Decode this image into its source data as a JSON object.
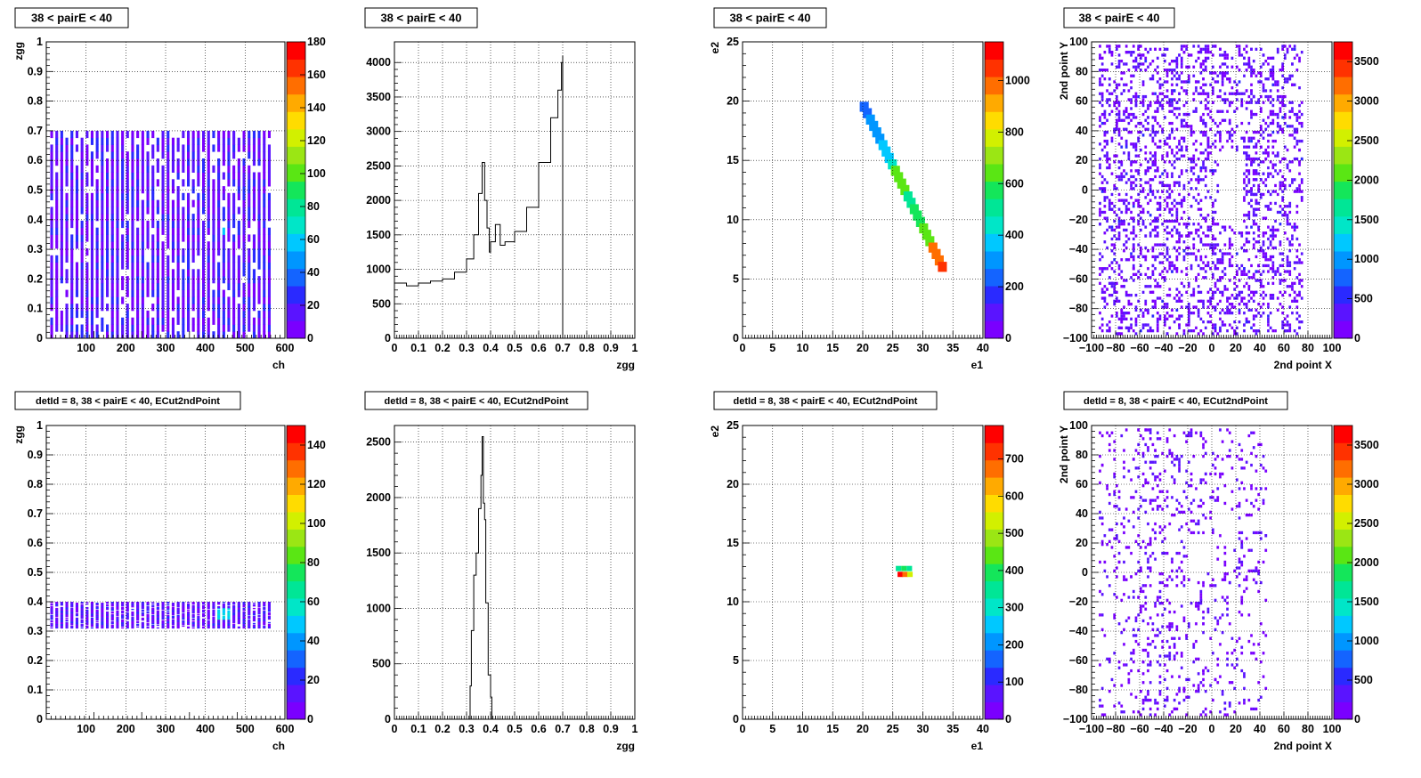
{
  "colors": {
    "palette": [
      "#7a00ff",
      "#5a14ff",
      "#2a2aff",
      "#1464ff",
      "#0096ff",
      "#00c8ff",
      "#00e6c8",
      "#00e696",
      "#14e65a",
      "#5ae614",
      "#9be614",
      "#d2f000",
      "#ffdc00",
      "#ffaa00",
      "#ff6e00",
      "#ff3200",
      "#ff0000"
    ],
    "grid": "#000000",
    "frame": "#000000"
  },
  "chart_data": [
    {
      "type": "heatmap",
      "title": "38 < pairE < 40",
      "xlabel": "ch",
      "ylabel": "zgg",
      "xlim": [
        0,
        600
      ],
      "ylim": [
        0,
        1
      ],
      "xticks": [
        100,
        200,
        300,
        400,
        500,
        600
      ],
      "xtick_labels": [
        "100",
        "200",
        "300",
        "400",
        "500",
        "600"
      ],
      "yticks": [
        0,
        0.1,
        0.2,
        0.3,
        0.4,
        0.5,
        0.6,
        0.7,
        0.8,
        0.9,
        1
      ],
      "ytick_labels": [
        "0",
        "0.1",
        "0.2",
        "0.3",
        "0.4",
        "0.5",
        "0.6",
        "0.7",
        "0.8",
        "0.9",
        "1"
      ],
      "zlim": [
        0,
        180
      ],
      "zticks": [
        0,
        20,
        40,
        60,
        80,
        100,
        120,
        140,
        160,
        180
      ],
      "ztick_labels": [
        "0",
        "20",
        "40",
        "60",
        "80",
        "100",
        "120",
        "140",
        "160",
        "180"
      ],
      "grid": true,
      "content": {
        "kind": "stripes",
        "x_range": [
          10,
          570
        ],
        "y_range": [
          0,
          0.7
        ],
        "stripe_count": 44,
        "hot_x": [
          440,
          450
        ],
        "hot_y": [
          0.33,
          0.4
        ]
      }
    },
    {
      "type": "line",
      "title": "38 < pairE < 40",
      "xlabel": "zgg",
      "ylabel": "",
      "xlim": [
        0,
        1
      ],
      "ylim": [
        0,
        4300
      ],
      "xticks": [
        0,
        0.1,
        0.2,
        0.3,
        0.4,
        0.5,
        0.6,
        0.7,
        0.8,
        0.9,
        1
      ],
      "xtick_labels": [
        "0",
        "0.1",
        "0.2",
        "0.3",
        "0.4",
        "0.5",
        "0.6",
        "0.7",
        "0.8",
        "0.9",
        "1"
      ],
      "yticks": [
        0,
        500,
        1000,
        1500,
        2000,
        2500,
        3000,
        3500,
        4000
      ],
      "ytick_labels": [
        "0",
        "500",
        "1000",
        "1500",
        "2000",
        "2500",
        "3000",
        "3500",
        "4000"
      ],
      "grid": true,
      "x": [
        0,
        0.05,
        0.1,
        0.15,
        0.2,
        0.25,
        0.3,
        0.33,
        0.35,
        0.365,
        0.375,
        0.385,
        0.395,
        0.4,
        0.42,
        0.44,
        0.46,
        0.5,
        0.55,
        0.6,
        0.65,
        0.68,
        0.695,
        0.7,
        0.7
      ],
      "values": [
        800,
        760,
        800,
        830,
        860,
        960,
        1150,
        1500,
        2100,
        2550,
        2000,
        1600,
        1250,
        1400,
        1650,
        1350,
        1400,
        1550,
        1900,
        2550,
        3200,
        3600,
        4000,
        4100,
        0
      ]
    },
    {
      "type": "heatmap",
      "title": "38 < pairE < 40",
      "xlabel": "e1",
      "ylabel": "e2",
      "xlim": [
        0,
        40
      ],
      "ylim": [
        0,
        25
      ],
      "xticks": [
        0,
        5,
        10,
        15,
        20,
        25,
        30,
        35,
        40
      ],
      "xtick_labels": [
        "0",
        "5",
        "10",
        "15",
        "20",
        "25",
        "30",
        "35",
        "40"
      ],
      "yticks": [
        0,
        5,
        10,
        15,
        20,
        25
      ],
      "ytick_labels": [
        "0",
        "5",
        "10",
        "15",
        "20",
        "25"
      ],
      "zlim": [
        0,
        1150
      ],
      "zticks": [
        0,
        200,
        400,
        600,
        800,
        1000
      ],
      "ztick_labels": [
        "0",
        "200",
        "400",
        "600",
        "800",
        "1000"
      ],
      "grid": true,
      "content": {
        "kind": "band",
        "x_range": [
          19.5,
          34
        ],
        "y_range": [
          6,
          19.5
        ]
      }
    },
    {
      "type": "heatmap",
      "title": "38 < pairE < 40",
      "xlabel": "2nd point X",
      "ylabel": "2nd point Y",
      "xlim": [
        -100,
        100
      ],
      "ylim": [
        -100,
        100
      ],
      "xticks": [
        -100,
        -80,
        -60,
        -40,
        -20,
        0,
        20,
        40,
        60,
        80,
        100
      ],
      "xtick_labels": [
        "−100",
        "−80",
        "−60",
        "−40",
        "−20",
        "0",
        "20",
        "40",
        "60",
        "80",
        "100"
      ],
      "yticks": [
        -100,
        -80,
        -60,
        -40,
        -20,
        0,
        20,
        40,
        60,
        80,
        100
      ],
      "ytick_labels": [
        "−100",
        "−80",
        "−60",
        "−40",
        "−20",
        "0",
        "20",
        "40",
        "60",
        "80",
        "100"
      ],
      "zlim": [
        0,
        3750
      ],
      "zticks": [
        0,
        500,
        1000,
        1500,
        2000,
        2500,
        3000,
        3500
      ],
      "ztick_labels": [
        "0",
        "500",
        "1000",
        "1500",
        "2000",
        "2500",
        "3000",
        "3500"
      ],
      "grid": true,
      "content": {
        "kind": "scatter2d",
        "x_range": [
          -95,
          75
        ],
        "y_range": [
          -98,
          97
        ],
        "density": "dense",
        "hole": [
          5,
          25,
          -25,
          25
        ]
      }
    },
    {
      "type": "heatmap",
      "title": "detId = 8, 38 < pairE < 40, ECut2ndPoint",
      "xlabel": "ch",
      "ylabel": "zgg",
      "xlim": [
        0,
        600
      ],
      "ylim": [
        0,
        1
      ],
      "xticks": [
        100,
        200,
        300,
        400,
        500,
        600
      ],
      "xtick_labels": [
        "100",
        "200",
        "300",
        "400",
        "500",
        "600"
      ],
      "yticks": [
        0,
        0.1,
        0.2,
        0.3,
        0.4,
        0.5,
        0.6,
        0.7,
        0.8,
        0.9,
        1
      ],
      "ytick_labels": [
        "0",
        "0.1",
        "0.2",
        "0.3",
        "0.4",
        "0.5",
        "0.6",
        "0.7",
        "0.8",
        "0.9",
        "1"
      ],
      "zlim": [
        0,
        150
      ],
      "zticks": [
        0,
        20,
        40,
        60,
        80,
        100,
        120,
        140
      ],
      "ztick_labels": [
        "0",
        "20",
        "40",
        "60",
        "80",
        "100",
        "120",
        "140"
      ],
      "grid": true,
      "content": {
        "kind": "stripes",
        "x_range": [
          10,
          570
        ],
        "y_range": [
          0.31,
          0.4
        ],
        "stripe_count": 44,
        "hot_x": [
          430,
          460
        ],
        "hot_y": [
          0.34,
          0.38
        ]
      }
    },
    {
      "type": "line",
      "title": "detId = 8, 38 < pairE < 40, ECut2ndPoint",
      "xlabel": "zgg",
      "ylabel": "",
      "xlim": [
        0,
        1
      ],
      "ylim": [
        0,
        2650
      ],
      "xticks": [
        0,
        0.1,
        0.2,
        0.3,
        0.4,
        0.5,
        0.6,
        0.7,
        0.8,
        0.9,
        1
      ],
      "xtick_labels": [
        "0",
        "0.1",
        "0.2",
        "0.3",
        "0.4",
        "0.5",
        "0.6",
        "0.7",
        "0.8",
        "0.9",
        "1"
      ],
      "yticks": [
        0,
        500,
        1000,
        1500,
        2000,
        2500
      ],
      "ytick_labels": [
        "0",
        "500",
        "1000",
        "1500",
        "2000",
        "2500"
      ],
      "grid": true,
      "x": [
        0.31,
        0.315,
        0.32,
        0.33,
        0.34,
        0.35,
        0.36,
        0.365,
        0.37,
        0.375,
        0.38,
        0.39,
        0.4,
        0.405
      ],
      "values": [
        0,
        300,
        800,
        1300,
        1500,
        1900,
        2200,
        2550,
        1950,
        1800,
        1050,
        400,
        200,
        0
      ]
    },
    {
      "type": "heatmap",
      "title": "detId = 8, 38 < pairE < 40, ECut2ndPoint",
      "xlabel": "e1",
      "ylabel": "e2",
      "xlim": [
        0,
        40
      ],
      "ylim": [
        0,
        25
      ],
      "xticks": [
        0,
        5,
        10,
        15,
        20,
        25,
        30,
        35,
        40
      ],
      "xtick_labels": [
        "0",
        "5",
        "10",
        "15",
        "20",
        "25",
        "30",
        "35",
        "40"
      ],
      "yticks": [
        0,
        5,
        10,
        15,
        20,
        25
      ],
      "ytick_labels": [
        "0",
        "5",
        "10",
        "15",
        "20",
        "25"
      ],
      "zlim": [
        0,
        790
      ],
      "zticks": [
        0,
        100,
        200,
        300,
        400,
        500,
        600,
        700
      ],
      "ztick_labels": [
        "0",
        "100",
        "200",
        "300",
        "400",
        "500",
        "600",
        "700"
      ],
      "grid": true,
      "content": {
        "kind": "blob",
        "x_range": [
          25.5,
          28
        ],
        "y_range": [
          12,
          13
        ]
      }
    },
    {
      "type": "heatmap",
      "title": "detId = 8, 38 < pairE < 40, ECut2ndPoint",
      "xlabel": "2nd point X",
      "ylabel": "2nd point Y",
      "xlim": [
        -100,
        100
      ],
      "ylim": [
        -100,
        100
      ],
      "xticks": [
        -100,
        -80,
        -60,
        -40,
        -20,
        0,
        20,
        40,
        60,
        80,
        100
      ],
      "xtick_labels": [
        "−100",
        "−80",
        "−60",
        "−40",
        "−20",
        "0",
        "20",
        "40",
        "60",
        "80",
        "100"
      ],
      "yticks": [
        -100,
        -80,
        -60,
        -40,
        -20,
        0,
        20,
        40,
        60,
        80,
        100
      ],
      "ytick_labels": [
        "−100",
        "−80",
        "−60",
        "−40",
        "−20",
        "0",
        "20",
        "40",
        "60",
        "80",
        "100"
      ],
      "zlim": [
        0,
        3750
      ],
      "zticks": [
        0,
        500,
        1000,
        1500,
        2000,
        2500,
        3000,
        3500
      ],
      "ztick_labels": [
        "0",
        "500",
        "1000",
        "1500",
        "2000",
        "2500",
        "3000",
        "3500"
      ],
      "grid": true,
      "content": {
        "kind": "scatter2d",
        "x_range": [
          -95,
          45
        ],
        "y_range": [
          -98,
          97
        ],
        "density": "sparse",
        "hole": [
          -20,
          0,
          0,
          25
        ]
      }
    }
  ]
}
